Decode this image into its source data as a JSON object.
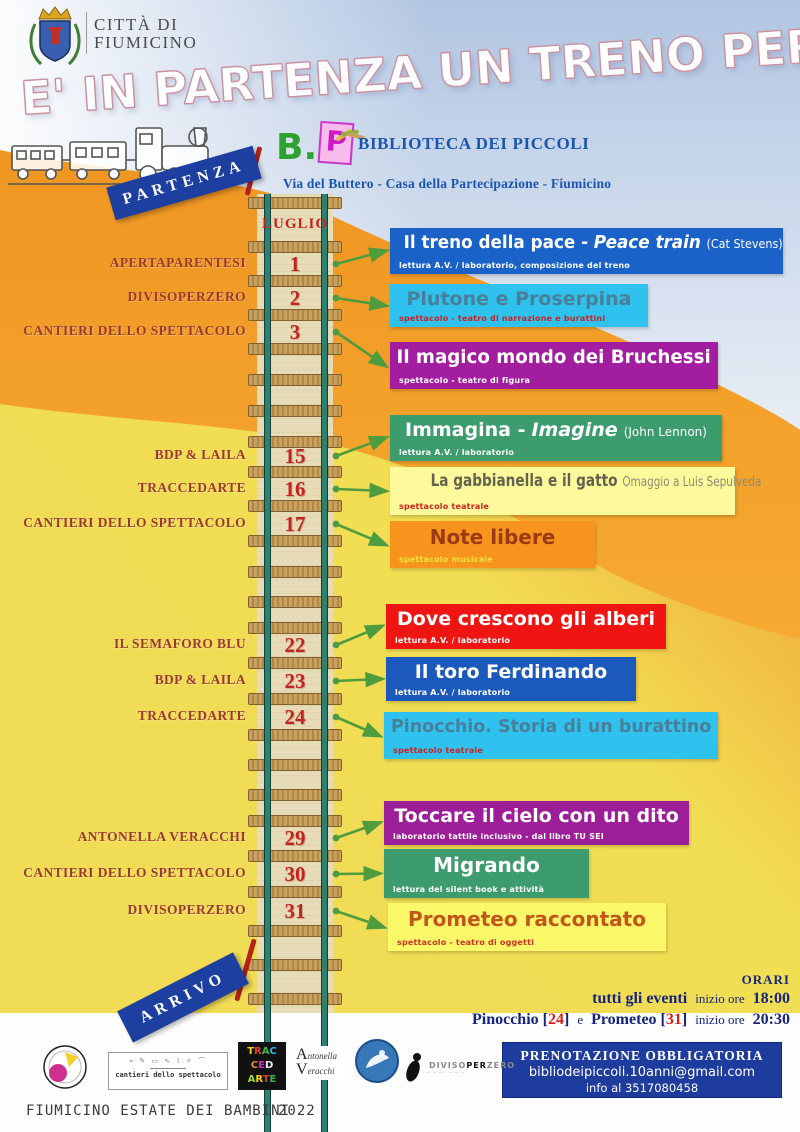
{
  "header": {
    "city_line1": "CITTÀ DI",
    "city_line2": "FIUMICINO",
    "title": "E' IN PARTENZA UN TRENO PER...",
    "partenza": "PARTENZA",
    "arrivo": "ARRIVO",
    "logo_b": "B.",
    "logo_p": "P",
    "library": "BIBLIOTECA DEI PICCOLI",
    "address": "Via del Buttero - Casa della Partecipazione - Fiumicino"
  },
  "track": {
    "month": "LUGLIO"
  },
  "events": [
    {
      "date": "1",
      "presenter": "APERTAPARENTESI",
      "title": "Il treno della pace -",
      "title_italic": "Peace train",
      "title_note": "(Cat Stevens)",
      "subtitle": "lettura A.V. / laboratorio, composizione del treno",
      "colors": {
        "bg": "#1a61c8",
        "fg": "#ffffff",
        "sub": "#ffffff"
      }
    },
    {
      "date": "2",
      "presenter": "DIVISOPERZERO",
      "title": "Plutone e Proserpina",
      "subtitle": "spettacolo - teatro di narrazione e burattini",
      "colors": {
        "bg": "#2fc2ef",
        "fg": "#4a7f99",
        "sub": "#cc2222"
      }
    },
    {
      "date": "3",
      "presenter": "CANTIERI DELLO SPETTACOLO",
      "title": "Il magico mondo dei Bruchessi",
      "subtitle": "spettacolo - teatro di figura",
      "colors": {
        "bg": "#a31da0",
        "fg": "#ffffff",
        "sub": "#ffffff"
      }
    },
    {
      "date": "15",
      "presenter": "BDP & LAILA",
      "title": "Immagina -",
      "title_italic": "Imagine",
      "title_note": "(John Lennon)",
      "subtitle": "lettura A.V. / laboratorio",
      "colors": {
        "bg": "#3c9c6d",
        "fg": "#ffffff",
        "sub": "#ffffff"
      }
    },
    {
      "date": "16",
      "presenter": "TRACCEDARTE",
      "title": "La gabbianella e il gatto",
      "title_note": "Omaggio a Luis Sepulveda",
      "subtitle": "spettacolo teatrale",
      "colors": {
        "bg": "#fcfa9b",
        "fg": "#62624e",
        "sub": "#cc2222",
        "note": "#8b8b74"
      }
    },
    {
      "date": "17",
      "presenter": "CANTIERI DELLO SPETTACOLO",
      "title": "Note libere",
      "subtitle": "spettacolo musicale",
      "colors": {
        "bg": "#f7941e",
        "fg": "#9c3a16",
        "sub": "#f2e23c"
      }
    },
    {
      "date": "22",
      "presenter": "IL SEMAFORO BLU",
      "title": "Dove crescono gli alberi",
      "subtitle": "lettura A.V. / laboratorio",
      "colors": {
        "bg": "#ee1512",
        "fg": "#ffffff",
        "sub": "#ffffff"
      }
    },
    {
      "date": "23",
      "presenter": "BDP & LAILA",
      "title": "Il toro Ferdinando",
      "subtitle": "lettura A.V. / laboratorio",
      "colors": {
        "bg": "#1c59bd",
        "fg": "#ffffff",
        "sub": "#ffffff"
      }
    },
    {
      "date": "24",
      "presenter": "TRACCEDARTE",
      "title": "Pinocchio. Storia di un burattino",
      "subtitle": "spettacolo teatrale",
      "colors": {
        "bg": "#2fc2ef",
        "fg": "#4a7f99",
        "sub": "#cc2222"
      }
    },
    {
      "date": "29",
      "presenter": "ANTONELLA VERACCHI",
      "title": "Toccare il cielo con un dito",
      "subtitle": "laboratorio tattile inclusivo -  dal libro TU SEI",
      "colors": {
        "bg": "#9c1e99",
        "fg": "#ffffff",
        "sub": "#ffffff"
      }
    },
    {
      "date": "30",
      "presenter": "CANTIERI DELLO SPETTACOLO",
      "title": "Migrando",
      "subtitle": "lettura del silent book e attività",
      "colors": {
        "bg": "#3c9c6d",
        "fg": "#ffffff",
        "sub": "#ffffff"
      }
    },
    {
      "date": "31",
      "presenter": "DIVISOPERZERO",
      "title": "Prometeo raccontato",
      "subtitle": "spettacolo - teatro di oggetti",
      "colors": {
        "bg": "#fbf969",
        "fg": "#c2551c",
        "sub": "#cc3322"
      }
    }
  ],
  "orari": {
    "heading": "ORARI",
    "l1_bold": "tutti gli eventi",
    "l1_mid": "inizio ore",
    "l1_time": "18:00",
    "bracket_open": "[",
    "bracket_close": "]",
    "l2_p1": "Pinocchio",
    "l2_n1": "24",
    "l2_mid": "e",
    "l2_p2": "Prometeo",
    "l2_n2": "31",
    "l2_tail": "inizio ore",
    "l2_time": "20:30"
  },
  "booking": {
    "line1": "PRENOTAZIONE  OBBLIGATORIA",
    "line2": "bibliodeipiccoli.10anni@gmail.com",
    "line3": "info al  3517080458"
  },
  "footer": {
    "text": "FIUMICINO ESTATE DEI BAMBINI",
    "year": "2022"
  },
  "logos": {
    "cantieri_text": "cantieri dello spettacolo",
    "traccedarte_rows": [
      "TRAC",
      "CED",
      "ARTE"
    ],
    "antonella": {
      "i1": "A",
      "r1": "ntonella",
      "i2": "V",
      "r2": "eracchi"
    },
    "diviso_p1": "DIVISO",
    "diviso_p2": "PER",
    "diviso_p3": "ZERO"
  },
  "palette": {
    "sky_blue": "#b2c6e2",
    "orange": "#f29a28",
    "yellow": "#efdb52",
    "banner_blue": "#1c3fa0",
    "arrow_green": "#4f9c3e",
    "date_red": "#c42420",
    "presenter_maroon": "#9c392b",
    "booking_blue": "#1e3c9e",
    "rail_teal": "#2d8173"
  }
}
